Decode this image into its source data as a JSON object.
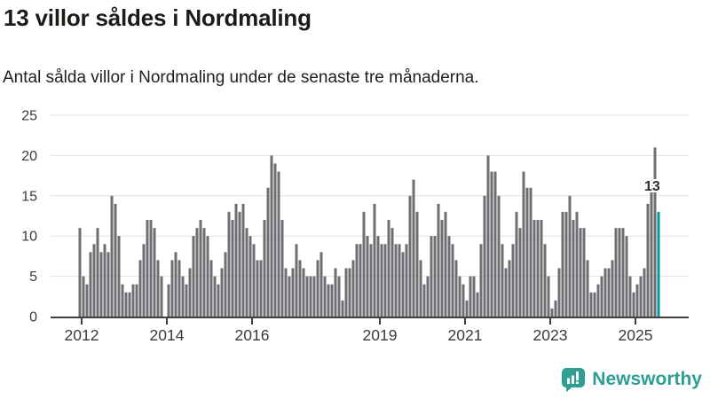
{
  "header": {
    "title": "13 villor såldes i Nordmaling",
    "subtitle": "Antal sålda villor i Nordmaling under de senaste tre månaderna."
  },
  "chart_data": {
    "type": "bar",
    "title": "13 villor såldes i Nordmaling",
    "subtitle": "Antal sålda villor i Nordmaling under de senaste tre månaderna.",
    "frequency": "monthly",
    "unit": "sålda villor (rullande tre månader)",
    "start_month": "2012-01",
    "end_month": "2025-08",
    "values": [
      11,
      5,
      4,
      8,
      9,
      11,
      8,
      9,
      8,
      15,
      14,
      10,
      4,
      3,
      3,
      4,
      4,
      7,
      9,
      12,
      12,
      11,
      7,
      5,
      0,
      4,
      7,
      8,
      7,
      5,
      4,
      6,
      10,
      11,
      12,
      11,
      10,
      7,
      5,
      4,
      6,
      8,
      13,
      12,
      14,
      13,
      14,
      11,
      10,
      9,
      7,
      7,
      12,
      16,
      20,
      19,
      18,
      12,
      6,
      5,
      6,
      9,
      7,
      6,
      5,
      5,
      5,
      7,
      8,
      5,
      4,
      4,
      6,
      5,
      2,
      6,
      6,
      7,
      9,
      9,
      13,
      10,
      9,
      14,
      10,
      9,
      9,
      12,
      11,
      9,
      9,
      8,
      9,
      15,
      17,
      13,
      7,
      4,
      5,
      10,
      10,
      14,
      12,
      13,
      10,
      9,
      7,
      5,
      4,
      2,
      5,
      5,
      3,
      9,
      15,
      20,
      18,
      18,
      15,
      9,
      6,
      7,
      9,
      13,
      11,
      18,
      16,
      16,
      12,
      12,
      12,
      9,
      5,
      1,
      2,
      6,
      13,
      13,
      15,
      12,
      13,
      11,
      11,
      7,
      3,
      3,
      4,
      5,
      6,
      6,
      7,
      11,
      11,
      11,
      10,
      5,
      3,
      4,
      5,
      6,
      14,
      17,
      21,
      13
    ],
    "highlight": {
      "index": 163,
      "label": "13",
      "color": "#00989e"
    },
    "bar_color": "#6d6d72",
    "ylim": [
      0,
      25
    ],
    "y_ticks": [
      0,
      5,
      10,
      15,
      20,
      25
    ],
    "x_tick_years": [
      2012,
      2014,
      2016,
      2019,
      2021,
      2023,
      2025
    ],
    "grid": true,
    "legend": false,
    "gridline_color": "#e2e2e2",
    "axis_color": "#404040",
    "tick_label_color": "#3a3a3a"
  },
  "footer": {
    "logo_text": "Newsworthy",
    "logo_color": "#2f9f93"
  }
}
